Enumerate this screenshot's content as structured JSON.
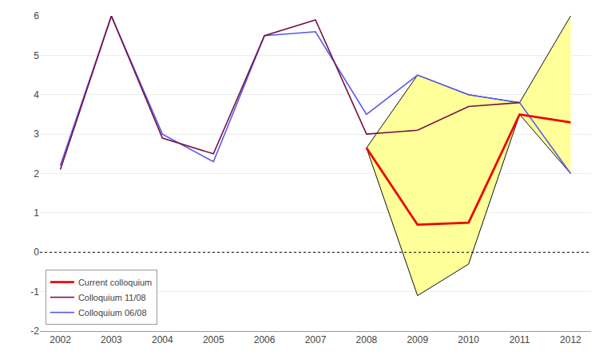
{
  "chart_data": {
    "type": "line",
    "x": [
      2002,
      2003,
      2004,
      2005,
      2006,
      2007,
      2008,
      2009,
      2010,
      2011,
      2012
    ],
    "series": [
      {
        "name": "Colloquium 06/08",
        "color": "#5555ee",
        "values": [
          2.2,
          6.0,
          3.0,
          2.3,
          5.5,
          5.6,
          3.5,
          4.5,
          4.0,
          3.8,
          2.0
        ]
      },
      {
        "name": "Colloquium 11/08",
        "color": "#771144",
        "values": [
          2.1,
          6.0,
          2.9,
          2.5,
          5.5,
          5.9,
          3.0,
          3.1,
          3.7,
          3.8,
          null
        ]
      },
      {
        "name": "Current colloquium",
        "color": "#ee0000",
        "x": [
          2008,
          2009,
          2010,
          2011,
          2012
        ],
        "values": [
          2.65,
          0.7,
          0.75,
          3.5,
          3.3
        ]
      }
    ],
    "band": {
      "x": [
        2008,
        2009,
        2010,
        2011,
        2012
      ],
      "upper": [
        2.65,
        4.5,
        4.0,
        3.8,
        6.0
      ],
      "lower": [
        2.65,
        -1.1,
        -0.3,
        3.5,
        2.0
      ],
      "color": "#ffff99",
      "edge_color": "#111111"
    },
    "hlines": [
      {
        "y": 0,
        "color": "#000000",
        "line_style": "dotted"
      }
    ],
    "xlim": [
      2001.6,
      2012.4
    ],
    "xticks": [
      2002,
      2003,
      2004,
      2005,
      2006,
      2007,
      2008,
      2009,
      2010,
      2011,
      2012
    ],
    "ylim": [
      -2,
      6
    ],
    "yticks": [
      -2,
      -1,
      0,
      1,
      2,
      3,
      4,
      5,
      6
    ],
    "grid": "y",
    "legend": "lower left"
  }
}
